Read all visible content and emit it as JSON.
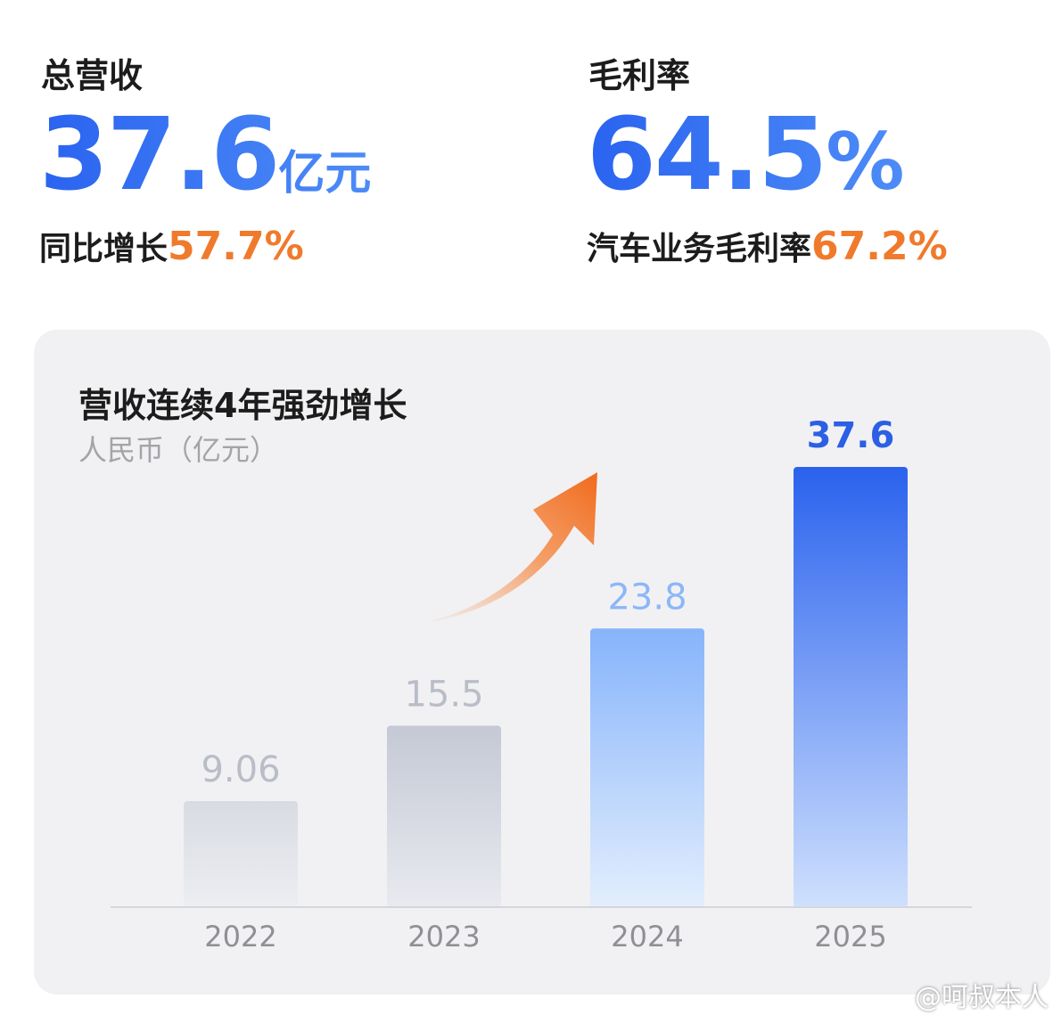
{
  "kpis": {
    "revenue": {
      "label": "总营收",
      "value": "37.6",
      "unit": "亿元",
      "sub_label": "同比增长",
      "sub_value": "57.7%"
    },
    "margin": {
      "label": "毛利率",
      "value": "64.5",
      "unit": "%",
      "sub_label": "汽车业务毛利率",
      "sub_value": "67.2%"
    }
  },
  "chart_card": {
    "title": "营收连续4年强劲增长",
    "unit_label": "人民币（亿元）"
  },
  "chart_data": {
    "type": "bar",
    "title": "营收连续4年强劲增长",
    "ylabel": "人民币（亿元）",
    "categories": [
      "2022",
      "2023",
      "2024",
      "2025"
    ],
    "values": [
      9.06,
      15.5,
      23.8,
      37.6
    ],
    "value_labels": [
      "9.06",
      "15.5",
      "23.8",
      "37.6"
    ],
    "grid": false,
    "bar_styles": [
      {
        "top": "#d9dbe3",
        "bottom": "#eceef2",
        "label": "#b9bdc7"
      },
      {
        "top": "#c5c9d5",
        "bottom": "#e8eaef",
        "label": "#b9bdc7"
      },
      {
        "top": "#86b4fb",
        "bottom": "#e3eefd",
        "label": "#8cb7f8"
      },
      {
        "top": "#2a62ee",
        "bottom": "#cfe0fd",
        "label": "#2b5fe5"
      }
    ],
    "annotation": "growth-arrow-icon"
  },
  "colors": {
    "accent_blue": "#2a63f0",
    "accent_orange": "#f07a2c",
    "card_bg": "#f1f1f3"
  },
  "watermark": "@呵叔本人"
}
